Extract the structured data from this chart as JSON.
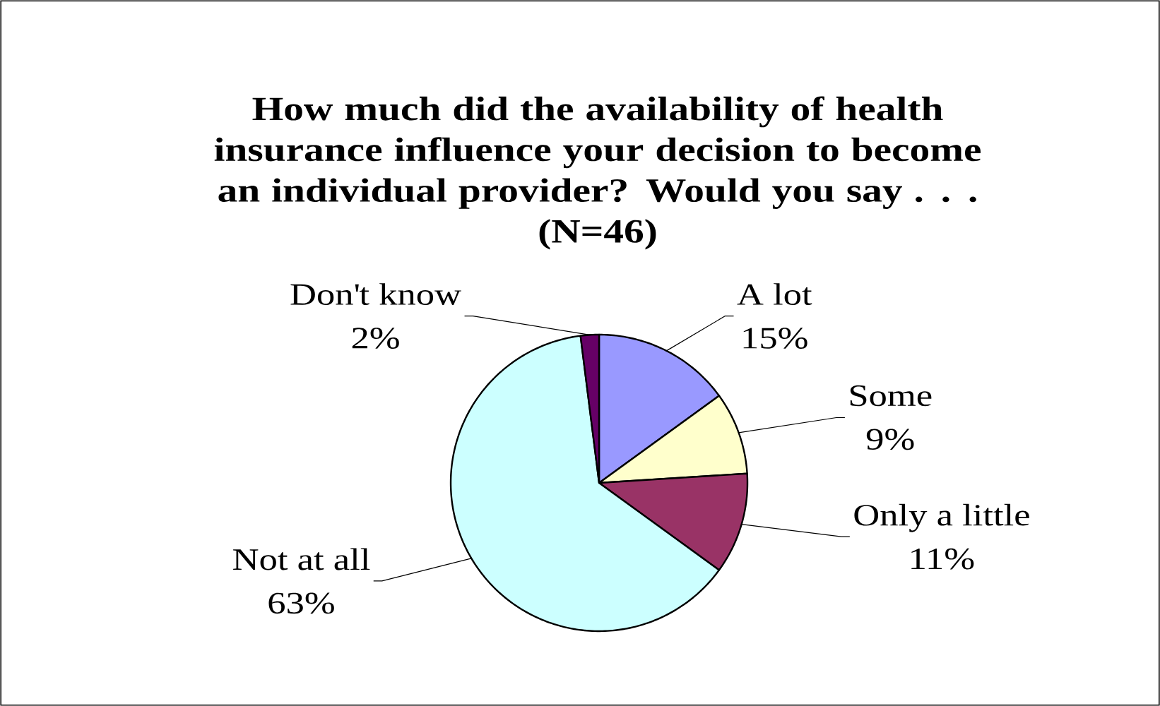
{
  "chart_data": {
    "type": "pie",
    "title": "How much did the availability of health insurance influence your decision to become an individual provider? Would you say . . .",
    "subtitle": "(N=46)",
    "categories": [
      "A lot",
      "Some",
      "Only a little",
      "Not at all",
      "Don't know"
    ],
    "values": [
      15,
      9,
      11,
      63,
      2
    ],
    "colors": [
      "#9999ff",
      "#ffffcc",
      "#993366",
      "#ccffff",
      "#660066"
    ],
    "value_labels": [
      "15%",
      "9%",
      "11%",
      "63%",
      "2%"
    ]
  }
}
